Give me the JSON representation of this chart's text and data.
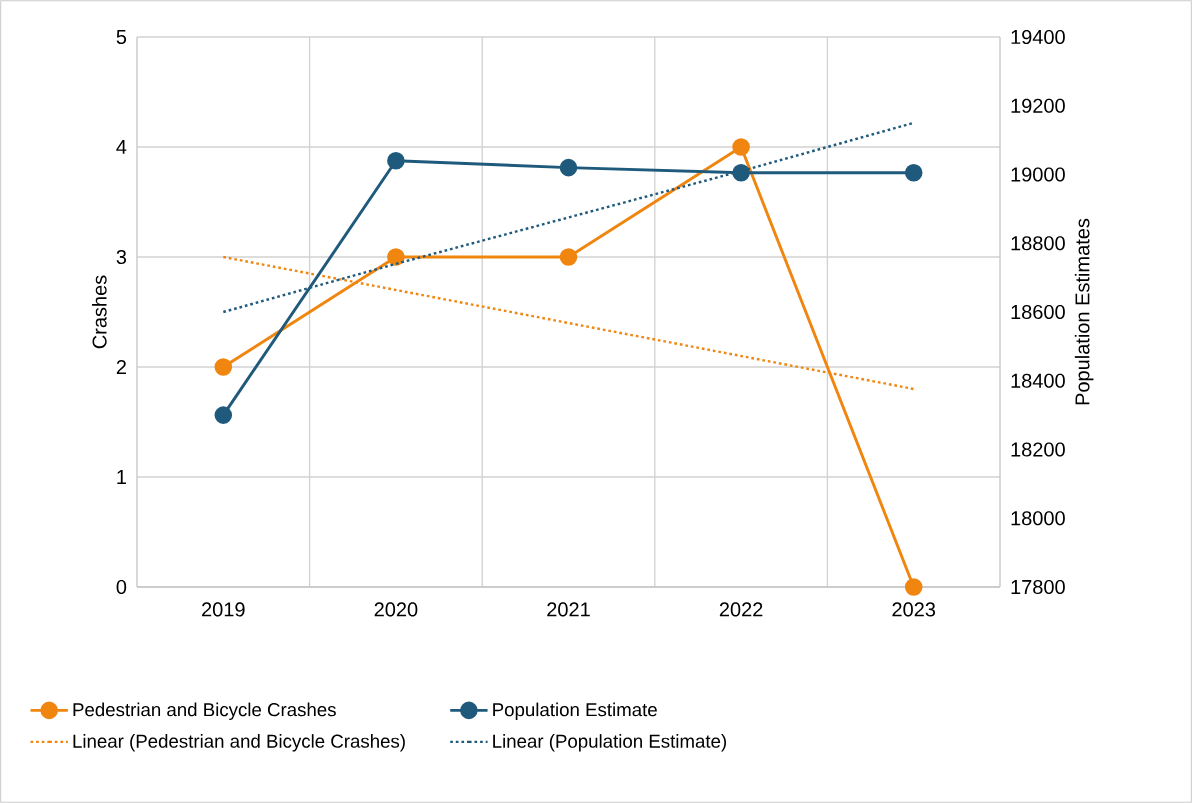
{
  "chart_data": {
    "type": "line",
    "xlabel": null,
    "ylabel": "Crashes",
    "y2label": "Population Estimates",
    "categories": [
      "2019",
      "2020",
      "2021",
      "2022",
      "2023"
    ],
    "series": [
      {
        "name": "Pedestrian and Bicycle Crashes",
        "color": "#f0860f",
        "values": [
          2,
          3,
          3,
          4,
          0
        ],
        "marker": "circle",
        "line_style": "solid"
      },
      {
        "name": "Population Estimate",
        "color": "#1f5a7c",
        "values": [
          18300,
          19040,
          19020,
          19005,
          19005
        ],
        "axis": "y2",
        "marker": "circle",
        "line_style": "solid"
      },
      {
        "name": "Linear (Pedestrian and Bicycle Crashes)",
        "type": "line",
        "color": "#f0860f",
        "values": [
          3.0,
          2.7,
          2.4,
          2.1,
          1.8
        ],
        "marker": "none",
        "line_style": "dotted"
      },
      {
        "name": "Linear (Population Estimate)",
        "type": "line",
        "color": "#1f5a7c",
        "values": [
          18600,
          18740,
          18875,
          19010,
          19150
        ],
        "axis": "y2",
        "marker": "none",
        "line_style": "dotted"
      }
    ],
    "ylim": [
      0,
      5
    ],
    "yticks": [
      0,
      1,
      2,
      3,
      4,
      5
    ],
    "y2lim": [
      17800,
      19400
    ],
    "y2ticks": [
      17800,
      18000,
      18200,
      18400,
      18600,
      18800,
      19000,
      19200,
      19400
    ],
    "grid": true,
    "legend": "bottom"
  }
}
